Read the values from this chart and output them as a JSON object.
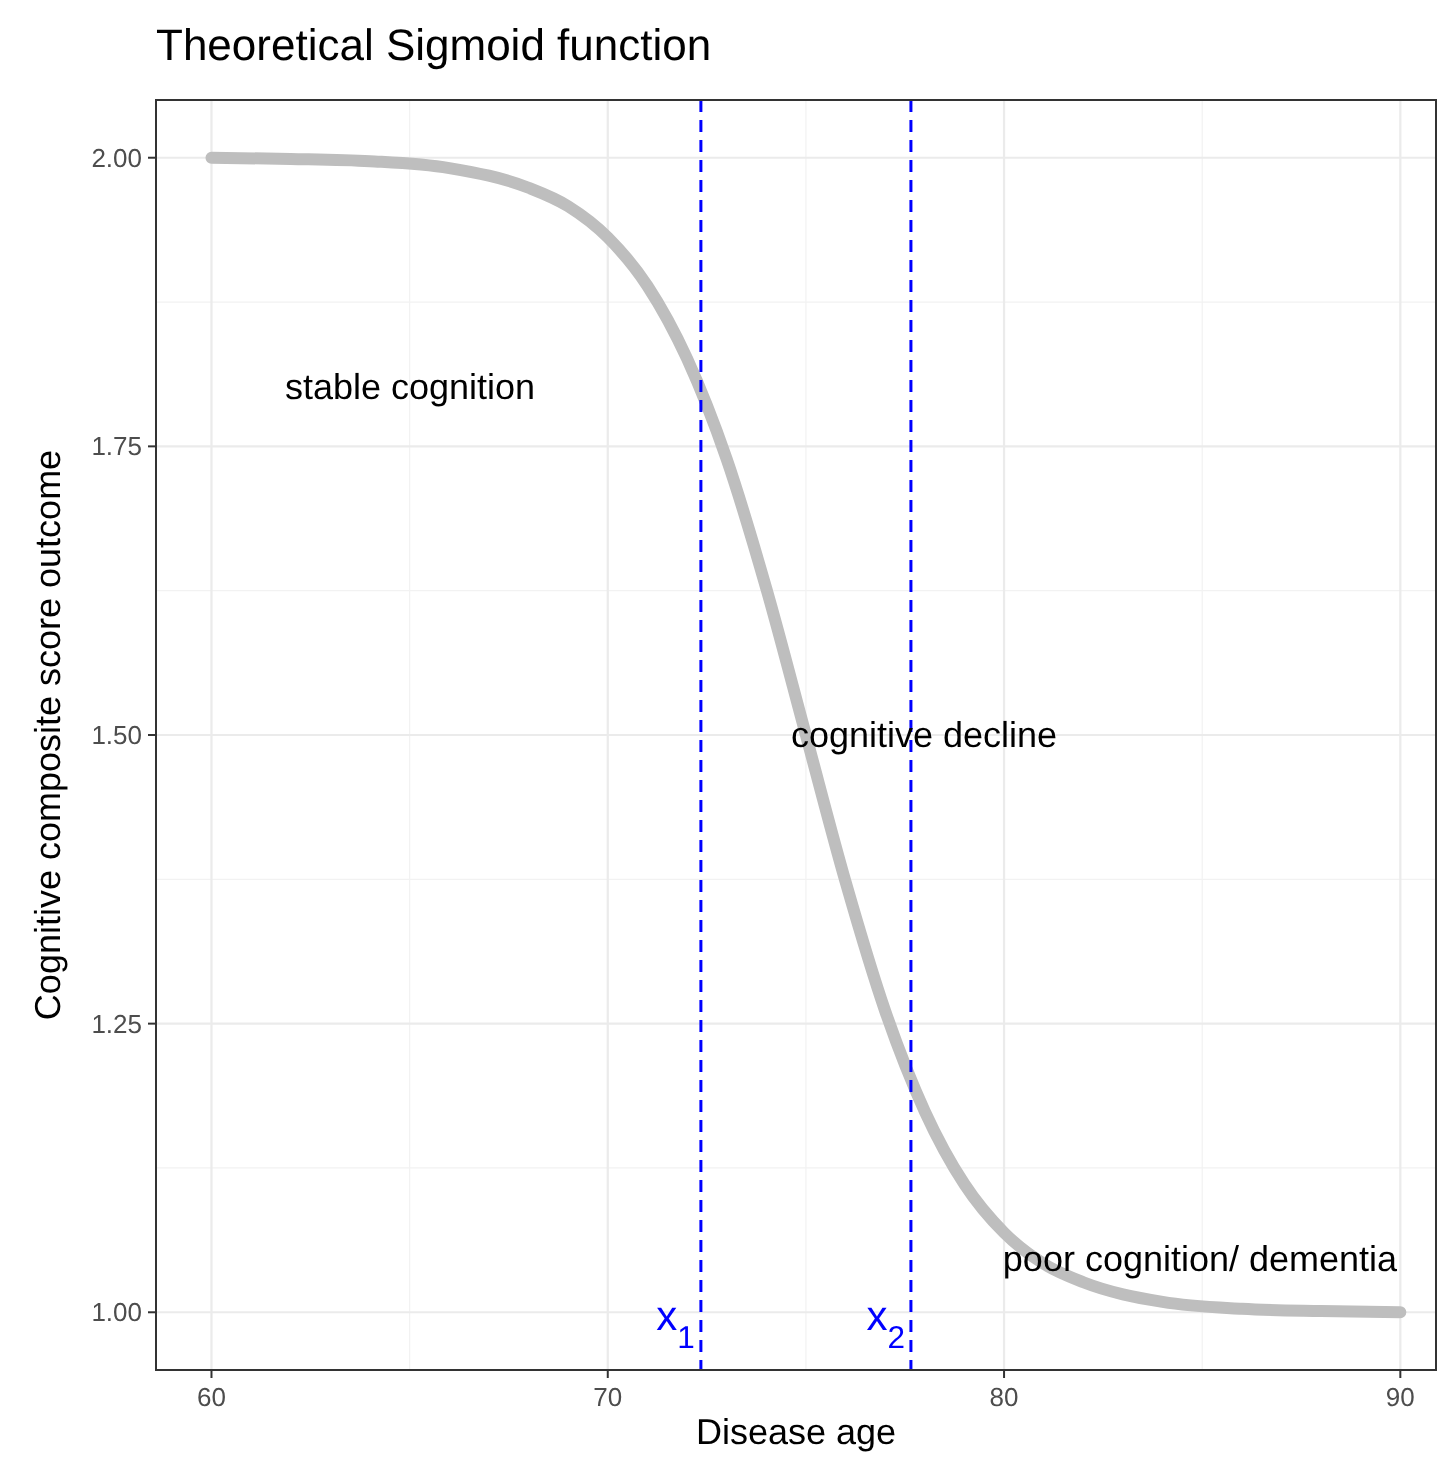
{
  "chart_data": {
    "type": "line",
    "title": "Theoretical Sigmoid function",
    "xlabel": "Disease age",
    "ylabel": "Cognitive composite score outcome",
    "x": [
      60,
      62,
      64,
      66,
      68,
      69,
      70,
      71,
      72,
      73,
      74,
      75,
      76,
      77,
      78,
      79,
      80,
      81,
      82,
      84,
      86,
      88,
      90
    ],
    "series": [
      {
        "color": "#bebebe",
        "values": [
          2.0,
          1.999,
          1.997,
          1.991,
          1.974,
          1.958,
          1.931,
          1.889,
          1.826,
          1.739,
          1.627,
          1.5,
          1.373,
          1.261,
          1.174,
          1.111,
          1.069,
          1.042,
          1.026,
          1.009,
          1.003,
          1.001,
          1.0
        ]
      }
    ],
    "xlim": [
      58.6,
      90.9
    ],
    "ylim": [
      0.95,
      2.05
    ],
    "xticks": [
      60,
      70,
      80,
      90
    ],
    "yticks": [
      {
        "value": 1,
        "label": "1.00"
      },
      {
        "value": 1.25,
        "label": "1.25"
      },
      {
        "value": 1.5,
        "label": "1.50"
      },
      {
        "value": 1.75,
        "label": "1.75"
      },
      {
        "value": 2,
        "label": "2.00"
      }
    ],
    "grid": true,
    "marker": "none",
    "line_style": "solid",
    "ref_lines": [
      {
        "axis": "x",
        "value": 72.35,
        "label": "x$_{1}$",
        "color": "#0000ff",
        "line_style": "dashed"
      },
      {
        "axis": "x",
        "value": 77.65,
        "label": "x$_{2}$",
        "color": "#0000ff",
        "line_style": "dashed"
      }
    ],
    "annotations": [
      "stable cognition",
      "cognitive decline",
      "poor cognition/ dementia"
    ]
  }
}
